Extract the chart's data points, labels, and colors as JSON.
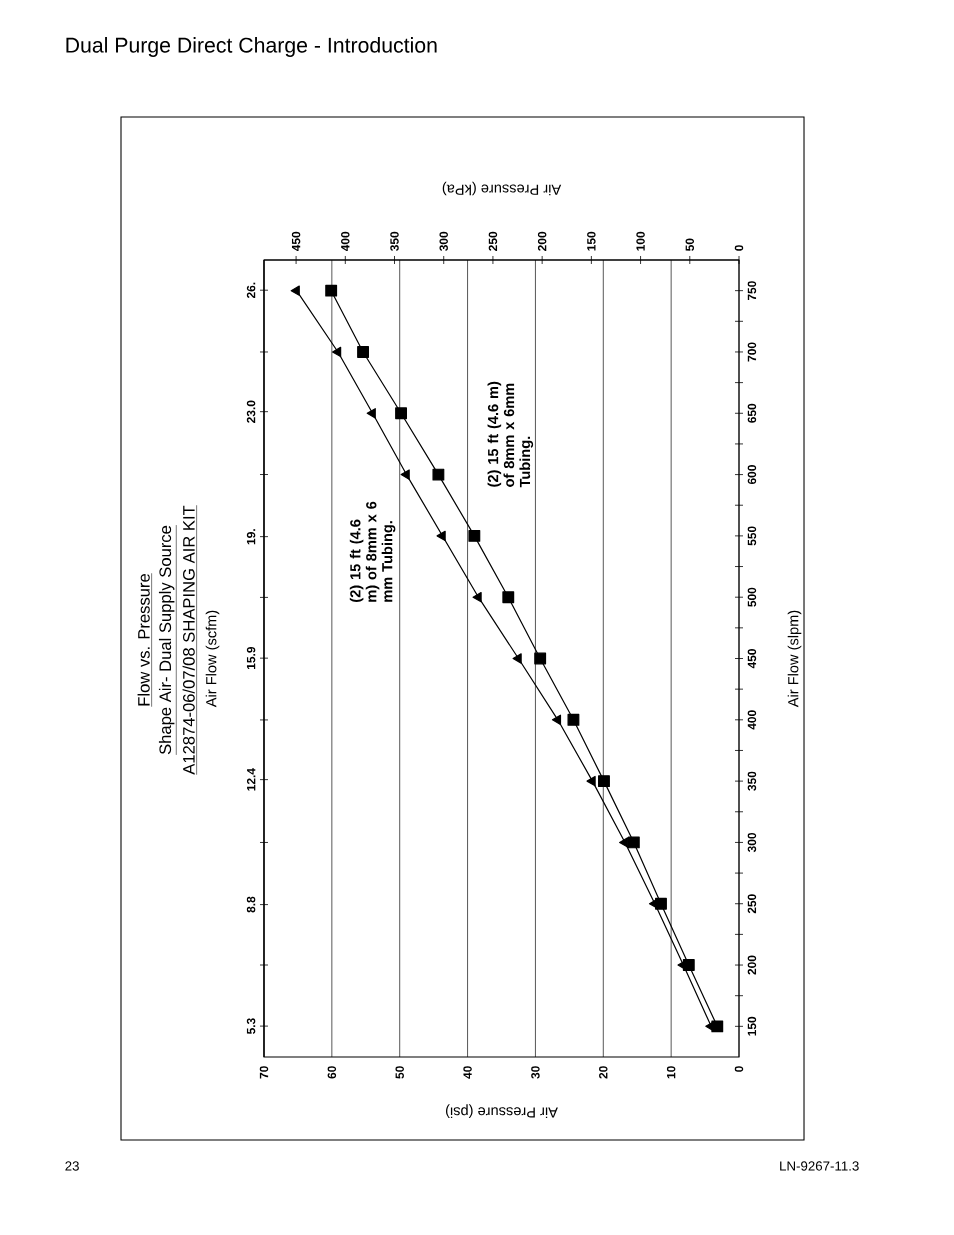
{
  "chart_data": {
    "type": "line",
    "title": "Flow vs. Pressure",
    "subtitle": "Shape Air- Dual Supply Source",
    "annotations": [
      "A12874-06/07/08 SHAPING AIR KIT",
      "Dual Purge Direct Charge - Introduction",
      "23",
      "LN-9267-11.3"
    ],
    "xlabel": "Air Pressure (psi)",
    "ylabel": "Air Flow (slpm)",
    "x2label": "Air Pressure (kPa)",
    "y2label": "Air Flow (scfm)",
    "series": [
      {
        "name": "(2) 15 ft (4.6 m) of 8mm x 6 mm Tubing.",
        "color": "#000000",
        "marker": "triangle",
        "x": [
          4.1,
          8.2,
          12.4,
          16.8,
          21.6,
          26.7,
          32.5,
          38.4,
          43.7,
          49.0,
          54.0,
          59.1,
          65.2
        ],
        "values": [
          150,
          200,
          250,
          300,
          350,
          400,
          450,
          500,
          550,
          600,
          650,
          700,
          750
        ]
      },
      {
        "name": "(2) 15 ft (4.6 m) of 8mm x 6mm Tubing.",
        "color": "#000000",
        "marker": "square",
        "x": [
          3.2,
          7.4,
          11.5,
          15.5,
          19.9,
          24.4,
          29.3,
          34.0,
          39.0,
          44.3,
          49.8,
          55.4,
          60.1
        ],
        "values": [
          150,
          200,
          250,
          300,
          350,
          400,
          450,
          500,
          550,
          600,
          650,
          700,
          750
        ]
      }
    ],
    "xlim": [
      70,
      0
    ],
    "xticks": [
      0,
      10,
      20,
      30,
      40,
      50,
      60,
      70
    ],
    "ylim": [
      125,
      775
    ],
    "yticks": [
      150,
      200,
      250,
      300,
      350,
      400,
      450,
      500,
      550,
      600,
      650,
      700,
      750,
      {
        "value": 175,
        "label": null
      },
      {
        "value": 225,
        "label": null
      },
      {
        "value": 275,
        "label": null
      },
      {
        "value": 325,
        "label": null
      },
      {
        "value": 375,
        "label": null
      },
      {
        "value": 425,
        "label": null
      },
      {
        "value": 475,
        "label": null
      },
      {
        "value": 525,
        "label": null
      },
      {
        "value": 575,
        "label": null
      },
      {
        "value": 625,
        "label": null
      },
      {
        "value": 675,
        "label": null
      },
      {
        "value": 725,
        "label": null
      }
    ],
    "x2lim": [
      482.6,
      0
    ],
    "x2ticks": [
      0,
      50,
      100,
      150,
      200,
      250,
      300,
      350,
      400,
      450
    ],
    "y2lim": [
      4.41,
      27.37
    ],
    "y2ticks": [
      5.3,
      8.8,
      12.4,
      15.9,
      {
        "value": 19.4,
        "label": "19."
      },
      {
        "value": 23.0,
        "label": "23.0"
      },
      {
        "value": 26.5,
        "label": "26."
      },
      {
        "value": 7.06,
        "label": null
      },
      {
        "value": 10.59,
        "label": null
      },
      {
        "value": 14.12,
        "label": null
      },
      {
        "value": 17.65,
        "label": null
      },
      {
        "value": 21.19,
        "label": null
      },
      {
        "value": 24.72,
        "label": null
      }
    ],
    "grid": "x",
    "line_style": "solid"
  }
}
